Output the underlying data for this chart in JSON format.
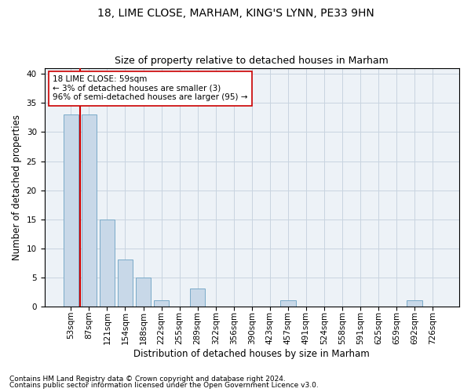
{
  "title1": "18, LIME CLOSE, MARHAM, KING'S LYNN, PE33 9HN",
  "title2": "Size of property relative to detached houses in Marham",
  "xlabel": "Distribution of detached houses by size in Marham",
  "ylabel": "Number of detached properties",
  "categories": [
    "53sqm",
    "87sqm",
    "121sqm",
    "154sqm",
    "188sqm",
    "222sqm",
    "255sqm",
    "289sqm",
    "322sqm",
    "356sqm",
    "390sqm",
    "423sqm",
    "457sqm",
    "491sqm",
    "524sqm",
    "558sqm",
    "591sqm",
    "625sqm",
    "659sqm",
    "692sqm",
    "726sqm"
  ],
  "values": [
    33,
    33,
    15,
    8,
    5,
    1,
    0,
    3,
    0,
    0,
    0,
    0,
    1,
    0,
    0,
    0,
    0,
    0,
    0,
    1,
    0
  ],
  "bar_color": "#c8d8e8",
  "bar_edge_color": "#7aaac8",
  "highlight_color": "#cc0000",
  "annotation_box_text": "18 LIME CLOSE: 59sqm\n← 3% of detached houses are smaller (3)\n96% of semi-detached houses are larger (95) →",
  "ylim": [
    0,
    41
  ],
  "yticks": [
    0,
    5,
    10,
    15,
    20,
    25,
    30,
    35,
    40
  ],
  "footnote1": "Contains HM Land Registry data © Crown copyright and database right 2024.",
  "footnote2": "Contains public sector information licensed under the Open Government Licence v3.0.",
  "bg_color": "#edf2f7",
  "grid_color": "#c8d4e0",
  "title1_fontsize": 10,
  "title2_fontsize": 9,
  "xlabel_fontsize": 8.5,
  "ylabel_fontsize": 8.5,
  "tick_fontsize": 7.5,
  "footnote_fontsize": 6.5,
  "annotation_fontsize": 7.5
}
